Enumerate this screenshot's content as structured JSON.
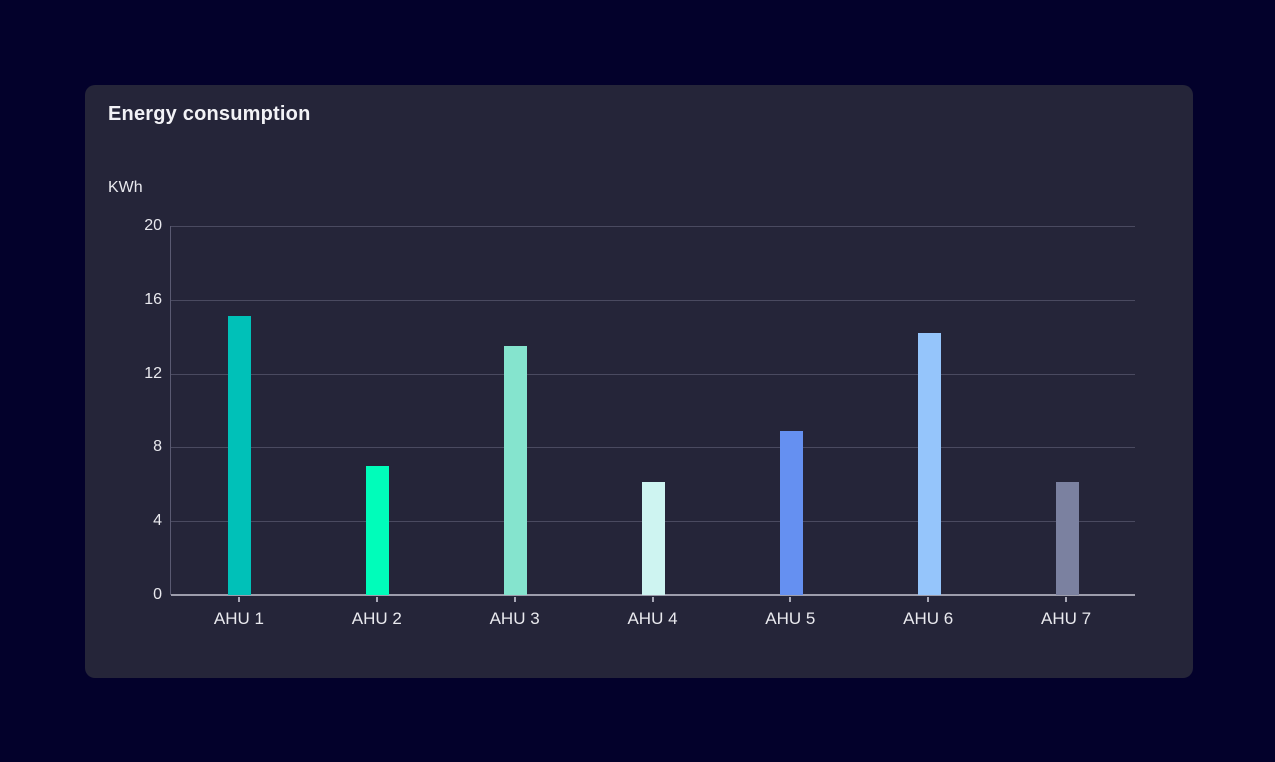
{
  "card": {
    "title": "Energy consumption"
  },
  "chart_data": {
    "type": "bar",
    "title": "Energy consumption",
    "ylabel": "KWh",
    "xlabel": "",
    "categories": [
      "AHU 1",
      "AHU 2",
      "AHU 3",
      "AHU 4",
      "AHU 5",
      "AHU 6",
      "AHU 7"
    ],
    "values": [
      15.1,
      7,
      13.5,
      6.1,
      8.9,
      14.2,
      6.1
    ],
    "bar_colors": [
      "#00c1b8",
      "#00fdba",
      "#85e4ce",
      "#cef4f1",
      "#6590f1",
      "#95c5fb",
      "#7b81a0"
    ],
    "yticks": [
      20,
      16,
      12,
      8,
      4,
      0
    ],
    "ylim": [
      0,
      20
    ],
    "grid": true,
    "legend_position": "none"
  },
  "colors": {
    "page_background": "#03012b",
    "card_background": "#252539",
    "gridline": "#4a4a60",
    "axis_line": "#9d9dac",
    "text": "#e9e9ee"
  }
}
